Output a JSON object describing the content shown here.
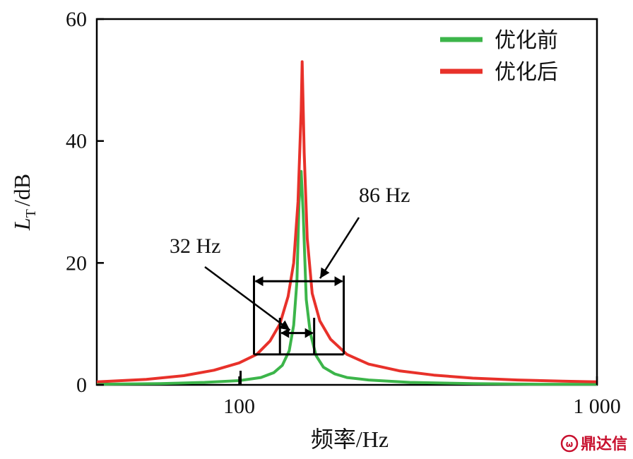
{
  "chart_data": {
    "type": "line",
    "title": "",
    "xlabel": "频率/Hz",
    "ylabel": {
      "symbol": "L",
      "subscript": "T",
      "unit": "/dB"
    },
    "x_scale": "log",
    "xlim": [
      40,
      1000
    ],
    "ylim": [
      0,
      60
    ],
    "x_ticks": [
      100,
      1000
    ],
    "x_tick_labels": [
      "100",
      "1 000"
    ],
    "y_ticks": [
      0,
      20,
      40,
      60
    ],
    "y_tick_labels": [
      "0",
      "20",
      "40",
      "60"
    ],
    "grid": false,
    "legend_position": "top-right",
    "series": [
      {
        "name": "优化前",
        "color": "#3cb54a",
        "x": [
          40,
          60,
          80,
          100,
          115,
          125,
          132,
          138,
          142,
          145,
          147,
          149,
          151,
          154,
          158,
          164,
          172,
          185,
          200,
          230,
          300,
          450,
          700,
          1000
        ],
        "y": [
          0.1,
          0.2,
          0.4,
          0.7,
          1.2,
          2.0,
          3.2,
          5.6,
          9.8,
          17,
          30,
          35,
          28,
          14,
          8.5,
          4.8,
          2.9,
          1.8,
          1.2,
          0.8,
          0.4,
          0.2,
          0.1,
          0.1
        ]
      },
      {
        "name": "优化后",
        "color": "#e8312a",
        "x": [
          40,
          55,
          70,
          85,
          100,
          112,
          122,
          130,
          137,
          142,
          146,
          149,
          150,
          152,
          155,
          160,
          168,
          180,
          200,
          230,
          280,
          350,
          450,
          600,
          800,
          1000
        ],
        "y": [
          0.5,
          0.9,
          1.5,
          2.4,
          3.6,
          5.0,
          7.2,
          10,
          14.5,
          20,
          30,
          45,
          53,
          38,
          24,
          15,
          10.5,
          7.5,
          5.0,
          3.4,
          2.3,
          1.6,
          1.1,
          0.8,
          0.6,
          0.5
        ]
      }
    ],
    "annotations": [
      {
        "text": "32 Hz",
        "bracket_x": [
          130,
          162
        ],
        "bracket_y": 8.5
      },
      {
        "text": "86 Hz",
        "bracket_x": [
          110,
          196
        ],
        "bracket_y": 17
      }
    ]
  },
  "watermark": {
    "text": "鼎达信"
  }
}
